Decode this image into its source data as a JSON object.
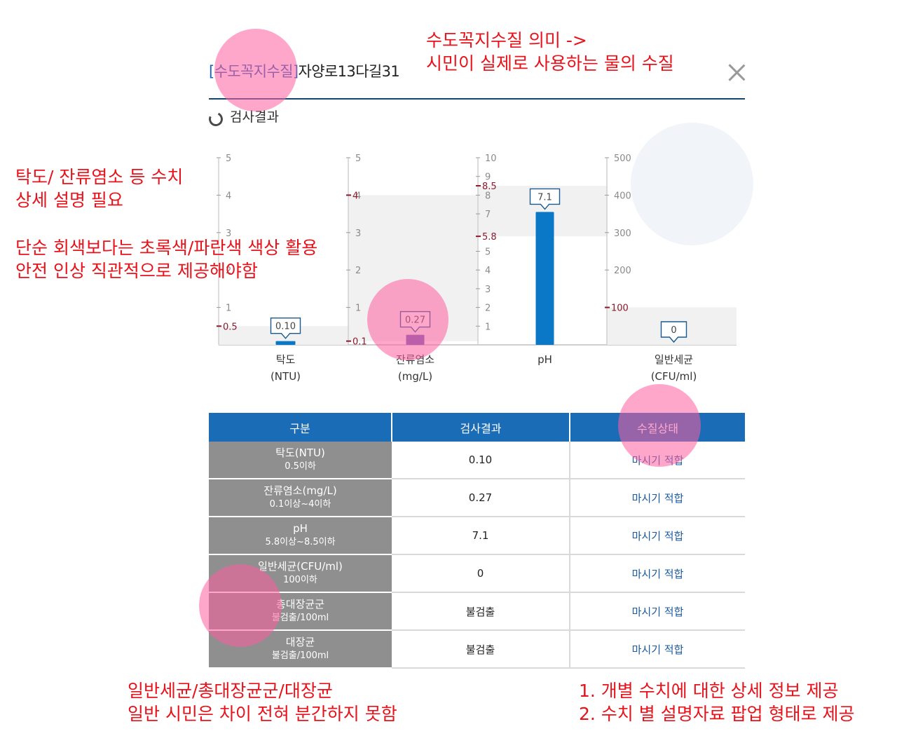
{
  "header": {
    "title_bracket_open": "[",
    "title_tag": "수도꼭지수질",
    "title_bracket_close": "]",
    "title_address": "자양로13다길31",
    "close_icon": "close-icon"
  },
  "section": {
    "icon": "circle-arrow-icon",
    "title": "검사결과"
  },
  "annotations": {
    "top_right": [
      "수도꼭지수질 의미 ->",
      "시민이 실제로 사용하는 물의 수질"
    ],
    "left": [
      "탁도/ 잔류염소 등 수치",
      "상세 설명 필요",
      "",
      "단순 회색보다는 초록색/파란색 색상 활용",
      "안전 인상 직관적으로 제공해야함"
    ],
    "bottom_left": [
      "일반세균/총대장균군/대장균",
      "일반 시민은 차이 전혀 분간하지 못함"
    ],
    "bottom_right": [
      "1. 개별 수치에 대한 상세 정보 제공",
      "2. 수치 별 설명자료 팝업 형태로 제공"
    ]
  },
  "chart_data": {
    "type": "bar",
    "colors": {
      "bar": "#0a78c6",
      "bar_residual": "#6b5db5",
      "range": "#f1f1f1",
      "limit_tick": "#8b1a2b",
      "axis": "#9a9a9a"
    },
    "panels": [
      {
        "name": "탁도",
        "unit": "(NTU)",
        "ylim": [
          0,
          5
        ],
        "ticks": [
          "5",
          "4",
          "3",
          "2",
          "1"
        ],
        "tick_values": [
          5,
          4,
          3,
          2,
          1
        ],
        "limits": [
          {
            "label": "0.5",
            "value": 0.5
          }
        ],
        "range": [
          0,
          0.5
        ],
        "value": 0.1,
        "value_label": "0.10",
        "bar": true,
        "bar_color": "#0a78c6"
      },
      {
        "name": "잔류염소",
        "unit": "(mg/L)",
        "ylim": [
          0,
          5
        ],
        "ticks": [
          "5",
          "4",
          "3",
          "2",
          "1"
        ],
        "tick_values": [
          5,
          4,
          3,
          2,
          1
        ],
        "limits": [
          {
            "label": "4",
            "value": 4
          },
          {
            "label": "0.1",
            "value": 0.1
          }
        ],
        "range": [
          0.1,
          4
        ],
        "value": 0.27,
        "value_label": "0.27",
        "bar": true,
        "bar_color": "#6b5db5"
      },
      {
        "name": "pH",
        "unit": "",
        "ylim": [
          0,
          10
        ],
        "ticks": [
          "10",
          "9",
          "8",
          "7",
          "5",
          "4",
          "3",
          "2",
          "1"
        ],
        "tick_values": [
          10,
          9,
          8,
          7,
          5,
          4,
          3,
          2,
          1
        ],
        "limits": [
          {
            "label": "8.5",
            "value": 8.5
          },
          {
            "label": "5.8",
            "value": 5.8
          }
        ],
        "range": [
          5.8,
          8.5
        ],
        "value": 7.1,
        "value_label": "7.1",
        "bar": true,
        "bar_color": "#0a78c6"
      },
      {
        "name": "일반세균",
        "unit": "(CFU/ml)",
        "ylim": [
          0,
          500
        ],
        "ticks": [
          "500",
          "400",
          "300",
          "200"
        ],
        "tick_values": [
          500,
          400,
          300,
          200
        ],
        "limits": [
          {
            "label": "100",
            "value": 100
          }
        ],
        "range": [
          0,
          100
        ],
        "value": 0,
        "value_label": "0",
        "bar": false,
        "bar_color": "#0a78c6"
      }
    ]
  },
  "table": {
    "headers": [
      "구분",
      "검사결과",
      "수질상태"
    ],
    "rows": [
      {
        "name": "탁도(NTU)",
        "std": "0.5이하",
        "result": "0.10",
        "status": "마시기 적합"
      },
      {
        "name": "잔류염소(mg/L)",
        "std": "0.1이상~4이하",
        "result": "0.27",
        "status": "마시기 적합"
      },
      {
        "name": "pH",
        "std": "5.8이상~8.5이하",
        "result": "7.1",
        "status": "마시기 적합"
      },
      {
        "name": "일반세균(CFU/ml)",
        "std": "100이하",
        "result": "0",
        "status": "마시기 적합"
      },
      {
        "name": "총대장균군",
        "std": "불검출/100ml",
        "result": "불검출",
        "status": "마시기 적합"
      },
      {
        "name": "대장균",
        "std": "불검출/100ml",
        "result": "불검출",
        "status": "마시기 적합"
      }
    ]
  }
}
